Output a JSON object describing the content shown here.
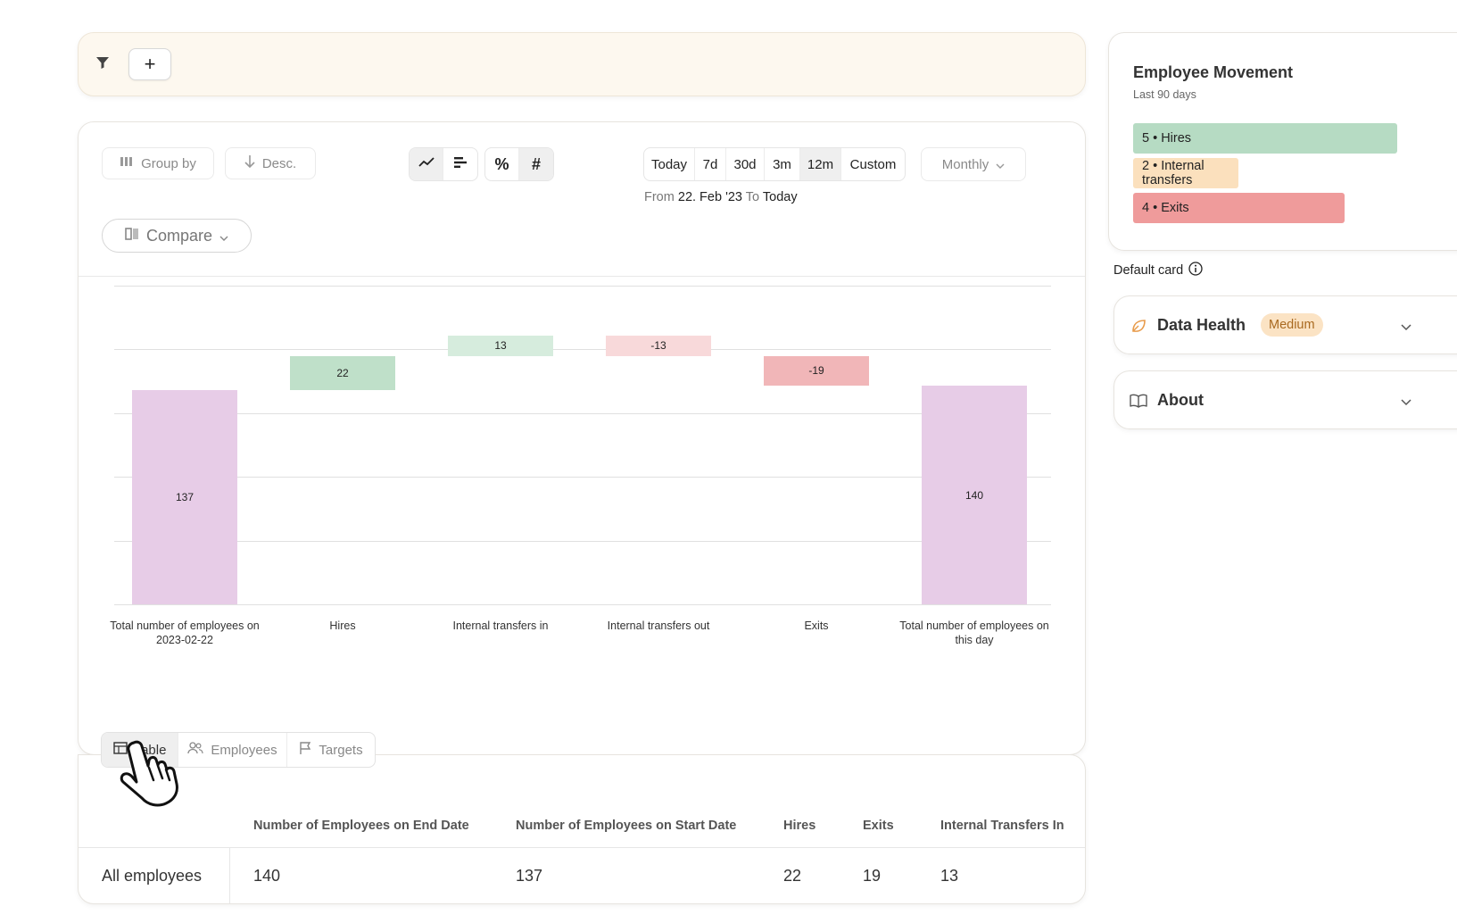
{
  "filter_bar": {
    "add_label": "+"
  },
  "toolbar": {
    "group_by": "Group by",
    "sort": "Desc.",
    "compare": "Compare",
    "ranges": [
      "Today",
      "7d",
      "30d",
      "3m",
      "12m",
      "Custom"
    ],
    "active_range": "12m",
    "interval": "Monthly",
    "from_label": "From",
    "from_value": "22. Feb '23",
    "to_label": "To",
    "to_value": "Today"
  },
  "chart_data": {
    "type": "bar",
    "subtype": "waterfall",
    "categories": [
      "Total number of employees on 2023-02-22",
      "Hires",
      "Internal transfers in",
      "Internal transfers out",
      "Exits",
      "Total number of employees on this day"
    ],
    "values": [
      137,
      22,
      13,
      -13,
      -19,
      140
    ],
    "labels": [
      "137",
      "22",
      "13",
      "-13",
      "-19",
      "140"
    ],
    "title": "",
    "xlabel": "",
    "ylabel": "",
    "grid": true,
    "colors": {
      "total": "#e7cce7",
      "hires": "#bfe0c9",
      "transfers_in": "#d6ecdd",
      "transfers_out": "#f8d9da",
      "exits": "#f1b6b8"
    }
  },
  "view_tabs": [
    {
      "label": "Table",
      "icon": "table-icon"
    },
    {
      "label": "Employees",
      "icon": "users-icon"
    },
    {
      "label": "Targets",
      "icon": "flag-icon"
    }
  ],
  "table": {
    "headers": [
      "",
      "Number of Employees on End Date",
      "Number of Employees on Start Date",
      "Hires",
      "Exits",
      "Internal Transfers In"
    ],
    "rows": [
      [
        "All employees",
        "140",
        "137",
        "22",
        "19",
        "13"
      ]
    ]
  },
  "movement_card": {
    "title": "Employee Movement",
    "subtitle": "Last 90 days",
    "items": [
      {
        "label": "5 • Hires",
        "fraction": 1.0,
        "color": "#b6dbc3"
      },
      {
        "label": "2 • Internal transfers",
        "fraction": 0.4,
        "color": "#fbe0bd"
      },
      {
        "label": "4 • Exits",
        "fraction": 0.8,
        "color": "#ef9b9b"
      }
    ]
  },
  "default_card_label": "Default card",
  "data_health": {
    "title": "Data Health",
    "badge": "Medium",
    "badge_color": "#fbe3c4"
  },
  "about": {
    "title": "About"
  }
}
